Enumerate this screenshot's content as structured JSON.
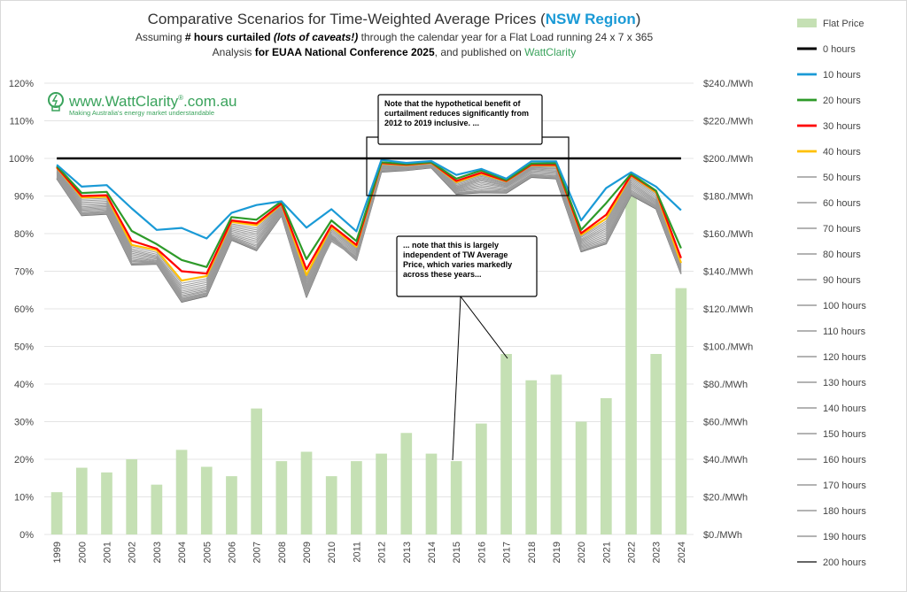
{
  "title": {
    "main": "Comparative Scenarios for Time-Weighted Average Prices (",
    "region": "NSW Region",
    "close": ")"
  },
  "subtitle1": {
    "a": "Assuming ",
    "b": "# hours curtailed",
    "c": " (lots of caveats!)",
    "d": " through the calendar year for a Flat Load running 24 x 7 x 365"
  },
  "subtitle2": {
    "a": "Analysis ",
    "b": "for EUAA National Conference 2025",
    "c": ", and published on ",
    "d": "WattClarity"
  },
  "logo": {
    "text": "www.WattClarity",
    "reg": "®",
    "suffix": ".com.au",
    "tagline": "Making Australia's energy market understandable"
  },
  "notes": [
    {
      "lines": [
        "Note that the hypothetical benefit of",
        "curtailment reduces significantly from",
        "2012 to 2019 inclusive. ..."
      ]
    },
    {
      "lines": [
        "... note that this is largely",
        "independent of TW Average",
        "Price, which varies markedly",
        "across these years..."
      ]
    }
  ],
  "colors": {
    "bar": "#c5e0b4",
    "h0": "#000000",
    "h10": "#1a9ad6",
    "h20": "#2e9a29",
    "h30": "#ff0000",
    "h40": "#ffc000",
    "grey": "#9a9a9a"
  },
  "chart_data": {
    "type": "bar",
    "categories": [
      "1999",
      "2000",
      "2001",
      "2002",
      "2003",
      "2004",
      "2005",
      "2006",
      "2007",
      "2008",
      "2009",
      "2010",
      "2011",
      "2012",
      "2013",
      "2014",
      "2015",
      "2016",
      "2017",
      "2018",
      "2019",
      "2020",
      "2021",
      "2022",
      "2023",
      "2024"
    ],
    "y_left": {
      "min": 0,
      "max": 120,
      "step": 10,
      "ticks": [
        "0%",
        "10%",
        "20%",
        "30%",
        "40%",
        "50%",
        "60%",
        "70%",
        "80%",
        "90%",
        "100%",
        "110%",
        "120%"
      ]
    },
    "y_right": {
      "min": 0,
      "max": 240,
      "step": 20,
      "ticks": [
        "$0./MWh",
        "$20./MWh",
        "$40./MWh",
        "$60./MWh",
        "$80./MWh",
        "$100./MWh",
        "$120./MWh",
        "$140./MWh",
        "$160./MWh",
        "$180./MWh",
        "$200./MWh",
        "$220./MWh",
        "$240./MWh"
      ]
    },
    "bars": {
      "name": "Flat Price",
      "axis": "right",
      "values": [
        22.5,
        35.5,
        33,
        40,
        26.5,
        45,
        36,
        31,
        67,
        39,
        44,
        31,
        39,
        43,
        54,
        43,
        39,
        59,
        96,
        82,
        85,
        60,
        72.5,
        180,
        96,
        131
      ]
    },
    "series": [
      {
        "name": "0 hours",
        "values": [
          100,
          100,
          100,
          100,
          100,
          100,
          100,
          100,
          100,
          100,
          100,
          100,
          100,
          100,
          100,
          100,
          100,
          100,
          100,
          100,
          100,
          100,
          100,
          100,
          100,
          100
        ]
      },
      {
        "name": "10 hours",
        "values": [
          98.3,
          92.5,
          92.9,
          86.7,
          81,
          81.5,
          78.7,
          85.5,
          87.6,
          88.6,
          81.6,
          86.5,
          80.6,
          99.6,
          98.8,
          99.3,
          95.6,
          97.2,
          94.6,
          99.2,
          99.2,
          83.5,
          92.1,
          96.3,
          92.5,
          86.2
        ]
      },
      {
        "name": "20 hours",
        "values": [
          98,
          90.8,
          91.1,
          80.7,
          77.2,
          73,
          71.1,
          84.4,
          83.7,
          88.6,
          73.2,
          83.5,
          78,
          99,
          98.5,
          99,
          94.6,
          96.8,
          94.2,
          98.6,
          98.7,
          81,
          88.1,
          95.9,
          91.4,
          76.1
        ]
      },
      {
        "name": "30 hours",
        "values": [
          97.7,
          90,
          90.2,
          78.1,
          76,
          70,
          69.4,
          83.5,
          82.7,
          88,
          70.5,
          82.2,
          77,
          98.8,
          98.3,
          98.9,
          94,
          96.2,
          94,
          98.3,
          98.3,
          80.1,
          85,
          95.6,
          91.3,
          73.5
        ]
      },
      {
        "name": "40 hours",
        "values": [
          97.5,
          89.6,
          89.8,
          77,
          75.6,
          67.5,
          68.7,
          83.1,
          82.2,
          87.8,
          69,
          81.8,
          76.5,
          98.6,
          98.2,
          98.8,
          93.7,
          95.9,
          93.9,
          98.2,
          98.1,
          79.7,
          84,
          95.4,
          91,
          72.2
        ]
      },
      {
        "name": "50 hours",
        "values": [
          97.3,
          89.1,
          89.4,
          76.5,
          75,
          66.8,
          68,
          82.6,
          81.5,
          87.6,
          68.4,
          81.3,
          76.1,
          98.5,
          98.1,
          98.7,
          93.4,
          95.5,
          93.7,
          98,
          97.9,
          79.3,
          83.3,
          95.1,
          90.6,
          72
        ]
      },
      {
        "name": "60 hours",
        "values": [
          97.1,
          88.7,
          89,
          76,
          74.5,
          66.2,
          67.5,
          82.2,
          81,
          87.4,
          67.9,
          80.9,
          75.8,
          98.4,
          98,
          98.6,
          93.1,
          95.2,
          93.5,
          97.8,
          97.7,
          79,
          82.8,
          94.8,
          90.2,
          71.8
        ]
      },
      {
        "name": "70 hours",
        "values": [
          96.9,
          88.3,
          88.6,
          75.6,
          74.1,
          65.7,
          67,
          81.8,
          80.5,
          87.2,
          67.4,
          80.5,
          75.5,
          98.2,
          97.9,
          98.5,
          92.8,
          94.9,
          93.3,
          97.6,
          97.4,
          78.6,
          82.3,
          94.4,
          89.8,
          71.6
        ]
      },
      {
        "name": "80 hours",
        "values": [
          96.7,
          87.9,
          88.2,
          75.2,
          73.8,
          65.2,
          66.5,
          81.4,
          80,
          87,
          67,
          80.1,
          75.2,
          98.1,
          97.7,
          98.4,
          92.5,
          94.6,
          93.1,
          97.4,
          97.2,
          78.3,
          81.8,
          94,
          89.4,
          71.4
        ]
      },
      {
        "name": "90 hours",
        "values": [
          96.5,
          87.5,
          87.8,
          74.8,
          73.5,
          64.7,
          66,
          81,
          79.5,
          86.8,
          66.5,
          79.7,
          74.9,
          98,
          97.6,
          98.3,
          92.3,
          94.3,
          92.9,
          97.2,
          96.9,
          78,
          81.3,
          93.6,
          89,
          71.2
        ]
      },
      {
        "name": "100 hours",
        "values": [
          96.3,
          87.1,
          87.5,
          74.4,
          73.2,
          64.3,
          65.6,
          80.6,
          79,
          86.6,
          66.1,
          79.3,
          74.6,
          97.8,
          97.5,
          98.2,
          92.1,
          94,
          92.7,
          97,
          96.6,
          77.7,
          80.8,
          93.2,
          88.7,
          71
        ]
      },
      {
        "name": "110 hours",
        "values": [
          96.1,
          86.8,
          87.2,
          74,
          72.9,
          63.9,
          65.2,
          80.2,
          78.5,
          86.4,
          65.7,
          78.9,
          74.3,
          97.6,
          97.4,
          98.1,
          91.9,
          93.6,
          92.5,
          96.7,
          96.3,
          77.4,
          80.3,
          92.8,
          88.4,
          70.8
        ]
      },
      {
        "name": "120 hours",
        "values": [
          95.9,
          86.5,
          86.9,
          73.6,
          72.7,
          63.5,
          64.9,
          79.8,
          78,
          86.2,
          65.3,
          78.5,
          74,
          97.4,
          97.3,
          98,
          91.7,
          93.2,
          92.3,
          96.4,
          96,
          77.1,
          79.8,
          92.4,
          88.1,
          70.6
        ]
      },
      {
        "name": "130 hours",
        "values": [
          95.7,
          86.2,
          86.6,
          73.2,
          72.5,
          63.2,
          64.6,
          79.5,
          77.5,
          86,
          65,
          78.2,
          73.8,
          97.2,
          97.2,
          97.9,
          91.5,
          92.8,
          92,
          96.1,
          95.7,
          76.8,
          79.3,
          92,
          87.8,
          70.4
        ]
      },
      {
        "name": "140 hours",
        "values": [
          95.5,
          85.9,
          86.3,
          72.9,
          72.4,
          62.9,
          64.3,
          79.2,
          77,
          85.8,
          64.6,
          77.9,
          73.6,
          97,
          97.1,
          97.8,
          91.3,
          92.4,
          91.7,
          95.8,
          95.4,
          76.5,
          78.8,
          91.6,
          87.5,
          70.2
        ]
      },
      {
        "name": "150 hours",
        "values": [
          95.3,
          85.6,
          86,
          72.6,
          72.3,
          62.6,
          64.1,
          79,
          76.6,
          85.6,
          64.2,
          79.7,
          73.4,
          96.9,
          97.1,
          97.8,
          91.1,
          92,
          91.5,
          95.6,
          95.2,
          76.2,
          78.4,
          91.3,
          87.3,
          70
        ]
      },
      {
        "name": "160 hours",
        "values": [
          95.1,
          85.4,
          85.8,
          72.3,
          72.2,
          62.4,
          63.9,
          78.8,
          76.2,
          85.4,
          63.8,
          79.4,
          73.2,
          96.8,
          97,
          97.7,
          90.9,
          91.6,
          91.3,
          95.4,
          95,
          75.9,
          78,
          91,
          87.1,
          69.8
        ]
      },
      {
        "name": "170 hours",
        "values": [
          94.9,
          85.2,
          85.6,
          72.1,
          72.1,
          62.2,
          63.7,
          78.6,
          75.9,
          85.2,
          63.5,
          79.2,
          73.1,
          96.7,
          97,
          97.7,
          90.8,
          91.3,
          91.1,
          95.3,
          94.9,
          75.6,
          77.7,
          90.7,
          86.9,
          69.6
        ]
      },
      {
        "name": "180 hours",
        "values": [
          94.8,
          85,
          85.4,
          71.9,
          72,
          62,
          63.6,
          78.5,
          75.7,
          85,
          63.3,
          79,
          73,
          96.6,
          96.9,
          97.6,
          90.7,
          91.1,
          91,
          95.2,
          94.8,
          75.4,
          77.5,
          90.5,
          86.8,
          69.5
        ]
      },
      {
        "name": "190 hours",
        "values": [
          94.7,
          84.9,
          85.3,
          71.8,
          72,
          61.9,
          63.5,
          78.4,
          75.6,
          84.9,
          63.2,
          78.9,
          72.9,
          96.5,
          96.9,
          97.6,
          90.6,
          91,
          90.9,
          95.1,
          94.7,
          75.3,
          77.4,
          90.3,
          86.7,
          69.4
        ]
      },
      {
        "name": "200 hours",
        "values": [
          94.6,
          84.8,
          85.2,
          71.7,
          71.9,
          61.8,
          63.4,
          78.3,
          75.5,
          84.8,
          63.1,
          78.8,
          72.9,
          96.4,
          96.8,
          97.5,
          90.5,
          90.9,
          90.8,
          95,
          94.6,
          75.2,
          77.3,
          90.2,
          86.6,
          69.3
        ]
      }
    ]
  }
}
